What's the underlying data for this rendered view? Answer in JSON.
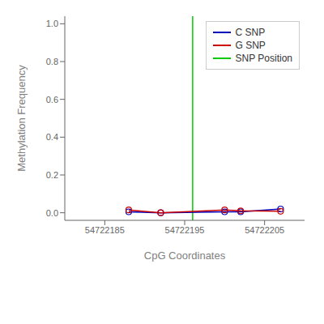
{
  "chart_data": {
    "type": "line",
    "title": "",
    "xlabel": "CpG Coordinates",
    "ylabel": "Methylation Frequency",
    "x": [
      54722188,
      54722192,
      54722200,
      54722202,
      54722207
    ],
    "series": [
      {
        "name": "C SNP",
        "color": "#0000BB",
        "marker": "circle",
        "values": [
          0.005,
          0.0,
          0.005,
          0.005,
          0.02
        ]
      },
      {
        "name": "G SNP",
        "color": "#CC0000",
        "marker": "circle",
        "values": [
          0.015,
          0.0,
          0.015,
          0.01,
          0.008
        ]
      }
    ],
    "vlines": [
      {
        "name": "SNP Position",
        "color": "#00CC00",
        "x": 54722196
      }
    ],
    "xlim": [
      54722180,
      54722210
    ],
    "ylim": [
      -0.04,
      1.04
    ],
    "xticks": [
      54722185,
      54722195,
      54722205
    ],
    "yticks": [
      {
        "value": 0.0,
        "label": "0.0"
      },
      0.2,
      0.4,
      0.6,
      0.8,
      {
        "value": 1.0,
        "label": "1.0"
      }
    ],
    "grid": false,
    "legend": "upper right"
  }
}
